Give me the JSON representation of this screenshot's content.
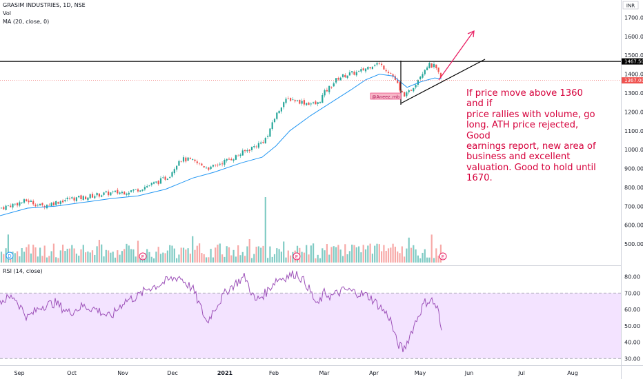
{
  "legend": {
    "symbol_line": "GRASIM INDUSTRIES, 1D, NSE",
    "vol_line": "Vol",
    "ma_line": "MA (20, close, 0)",
    "rsi_line": "RSI (14, close)"
  },
  "currency_badge": "INR",
  "price_axis_ticks": [
    "1700.00",
    "1600.00",
    "1500.00",
    "1400.00",
    "1300.00",
    "1200.00",
    "1100.00",
    "1000.00",
    "900.00",
    "800.00",
    "700.00",
    "600.00",
    "500.00"
  ],
  "price_tags": {
    "resistance": "1467.50",
    "last": "1367.00"
  },
  "rsi_axis_ticks": [
    "80.00",
    "70.00",
    "60.00",
    "50.00",
    "40.00",
    "30.00"
  ],
  "x_axis_labels": [
    "Sep",
    "Oct",
    "Nov",
    "Dec",
    "2021",
    "Feb",
    "Mar",
    "Apr",
    "May",
    "Jun",
    "Jul",
    "Aug"
  ],
  "earnings_marker": "E",
  "dividend_marker": "D",
  "author_tag": "@Aneez_mb",
  "annotation_lines": [
    "If price move above 1360 and if",
    "price rallies with volume, go",
    "long. ATH price rejected, Good",
    "earnings report, new area of",
    "business and excellent",
    "valuation. Good to hold until",
    "1670."
  ],
  "colors": {
    "up": "#26a69a",
    "down": "#ef5350",
    "ma": "#2196f3",
    "rsi_line": "#9c50b8",
    "rsi_band": "#f3e3ff",
    "annotation": "#d6003b",
    "resistance": "#000000"
  },
  "chart_data": {
    "type": "candlestick",
    "price_range": [
      460,
      1720
    ],
    "resistance_level": 1467.5,
    "last_price": 1367.0,
    "target_level": 1670,
    "rsi_range": [
      28,
      84
    ],
    "rsi_band": [
      30,
      70
    ],
    "price_path": [
      [
        0,
        690
      ],
      [
        20,
        710
      ],
      [
        40,
        730
      ],
      [
        60,
        700
      ],
      [
        80,
        720
      ],
      [
        100,
        740
      ],
      [
        120,
        745
      ],
      [
        140,
        760
      ],
      [
        160,
        770
      ],
      [
        180,
        775
      ],
      [
        200,
        790
      ],
      [
        215,
        810
      ],
      [
        230,
        830
      ],
      [
        245,
        860
      ],
      [
        260,
        950
      ],
      [
        275,
        945
      ],
      [
        290,
        920
      ],
      [
        305,
        900
      ],
      [
        320,
        930
      ],
      [
        340,
        960
      ],
      [
        360,
        1000
      ],
      [
        380,
        1040
      ],
      [
        390,
        1080
      ],
      [
        395,
        1150
      ],
      [
        400,
        1180
      ],
      [
        410,
        1250
      ],
      [
        420,
        1270
      ],
      [
        440,
        1250
      ],
      [
        460,
        1240
      ],
      [
        470,
        1300
      ],
      [
        480,
        1340
      ],
      [
        490,
        1380
      ],
      [
        505,
        1400
      ],
      [
        520,
        1410
      ],
      [
        535,
        1440
      ],
      [
        545,
        1460
      ],
      [
        555,
        1440
      ],
      [
        565,
        1410
      ],
      [
        575,
        1360
      ],
      [
        580,
        1300
      ],
      [
        590,
        1290
      ],
      [
        600,
        1340
      ],
      [
        610,
        1400
      ],
      [
        620,
        1450
      ],
      [
        630,
        1440
      ],
      [
        640,
        1367
      ]
    ],
    "ma_path": [
      [
        0,
        650
      ],
      [
        40,
        690
      ],
      [
        80,
        700
      ],
      [
        120,
        720
      ],
      [
        160,
        740
      ],
      [
        200,
        755
      ],
      [
        240,
        790
      ],
      [
        280,
        850
      ],
      [
        310,
        880
      ],
      [
        350,
        930
      ],
      [
        380,
        960
      ],
      [
        400,
        1020
      ],
      [
        420,
        1100
      ],
      [
        450,
        1180
      ],
      [
        480,
        1250
      ],
      [
        510,
        1320
      ],
      [
        530,
        1370
      ],
      [
        550,
        1400
      ],
      [
        570,
        1390
      ],
      [
        590,
        1330
      ],
      [
        610,
        1360
      ],
      [
        630,
        1380
      ],
      [
        640,
        1375
      ]
    ],
    "volume_spikes": [
      {
        "x": 384,
        "rel": 1.0
      }
    ],
    "rsi_path": [
      [
        0,
        65
      ],
      [
        20,
        68
      ],
      [
        40,
        55
      ],
      [
        60,
        62
      ],
      [
        80,
        64
      ],
      [
        100,
        58
      ],
      [
        120,
        62
      ],
      [
        140,
        60
      ],
      [
        160,
        55
      ],
      [
        180,
        65
      ],
      [
        200,
        68
      ],
      [
        215,
        73
      ],
      [
        230,
        75
      ],
      [
        245,
        78
      ],
      [
        260,
        80
      ],
      [
        280,
        72
      ],
      [
        300,
        52
      ],
      [
        310,
        60
      ],
      [
        330,
        72
      ],
      [
        345,
        77
      ],
      [
        355,
        80
      ],
      [
        370,
        65
      ],
      [
        385,
        70
      ],
      [
        400,
        78
      ],
      [
        415,
        80
      ],
      [
        430,
        82
      ],
      [
        445,
        75
      ],
      [
        460,
        62
      ],
      [
        470,
        70
      ],
      [
        480,
        68
      ],
      [
        500,
        72
      ],
      [
        520,
        70
      ],
      [
        535,
        68
      ],
      [
        550,
        62
      ],
      [
        565,
        55
      ],
      [
        575,
        40
      ],
      [
        585,
        35
      ],
      [
        595,
        45
      ],
      [
        605,
        55
      ],
      [
        615,
        64
      ],
      [
        625,
        66
      ],
      [
        635,
        60
      ],
      [
        640,
        45
      ]
    ]
  }
}
